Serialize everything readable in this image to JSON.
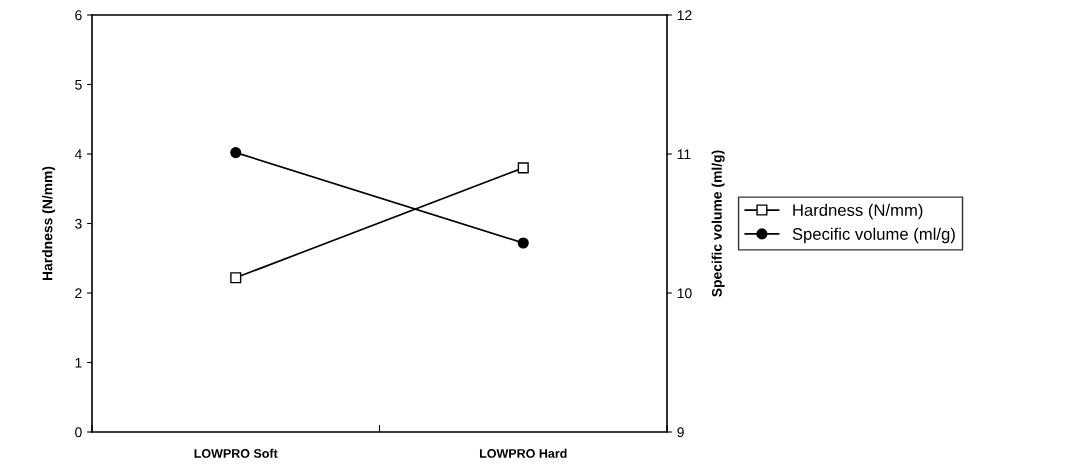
{
  "chart_data": {
    "type": "line",
    "categories": [
      "LOWPRO Soft",
      "LOWPRO Hard"
    ],
    "ylabel": "Hardness (N/mm)",
    "y2label": "Specific volume (ml/g)",
    "ylim": [
      0,
      6
    ],
    "yticks": [
      0,
      1,
      2,
      3,
      4,
      5,
      6
    ],
    "y2lim": [
      9,
      12
    ],
    "y2ticks": [
      9,
      10,
      11,
      12
    ],
    "grid": false,
    "legend": "right",
    "series": [
      {
        "name": "Hardness (N/mm)",
        "color": "#000000",
        "marker": "square",
        "values": [
          2.22,
          3.8
        ]
      },
      {
        "name": "Specific volume (ml/g)",
        "color": "#000000",
        "marker": "circle",
        "axis": "y2",
        "values": [
          11.01,
          10.36
        ]
      }
    ]
  }
}
